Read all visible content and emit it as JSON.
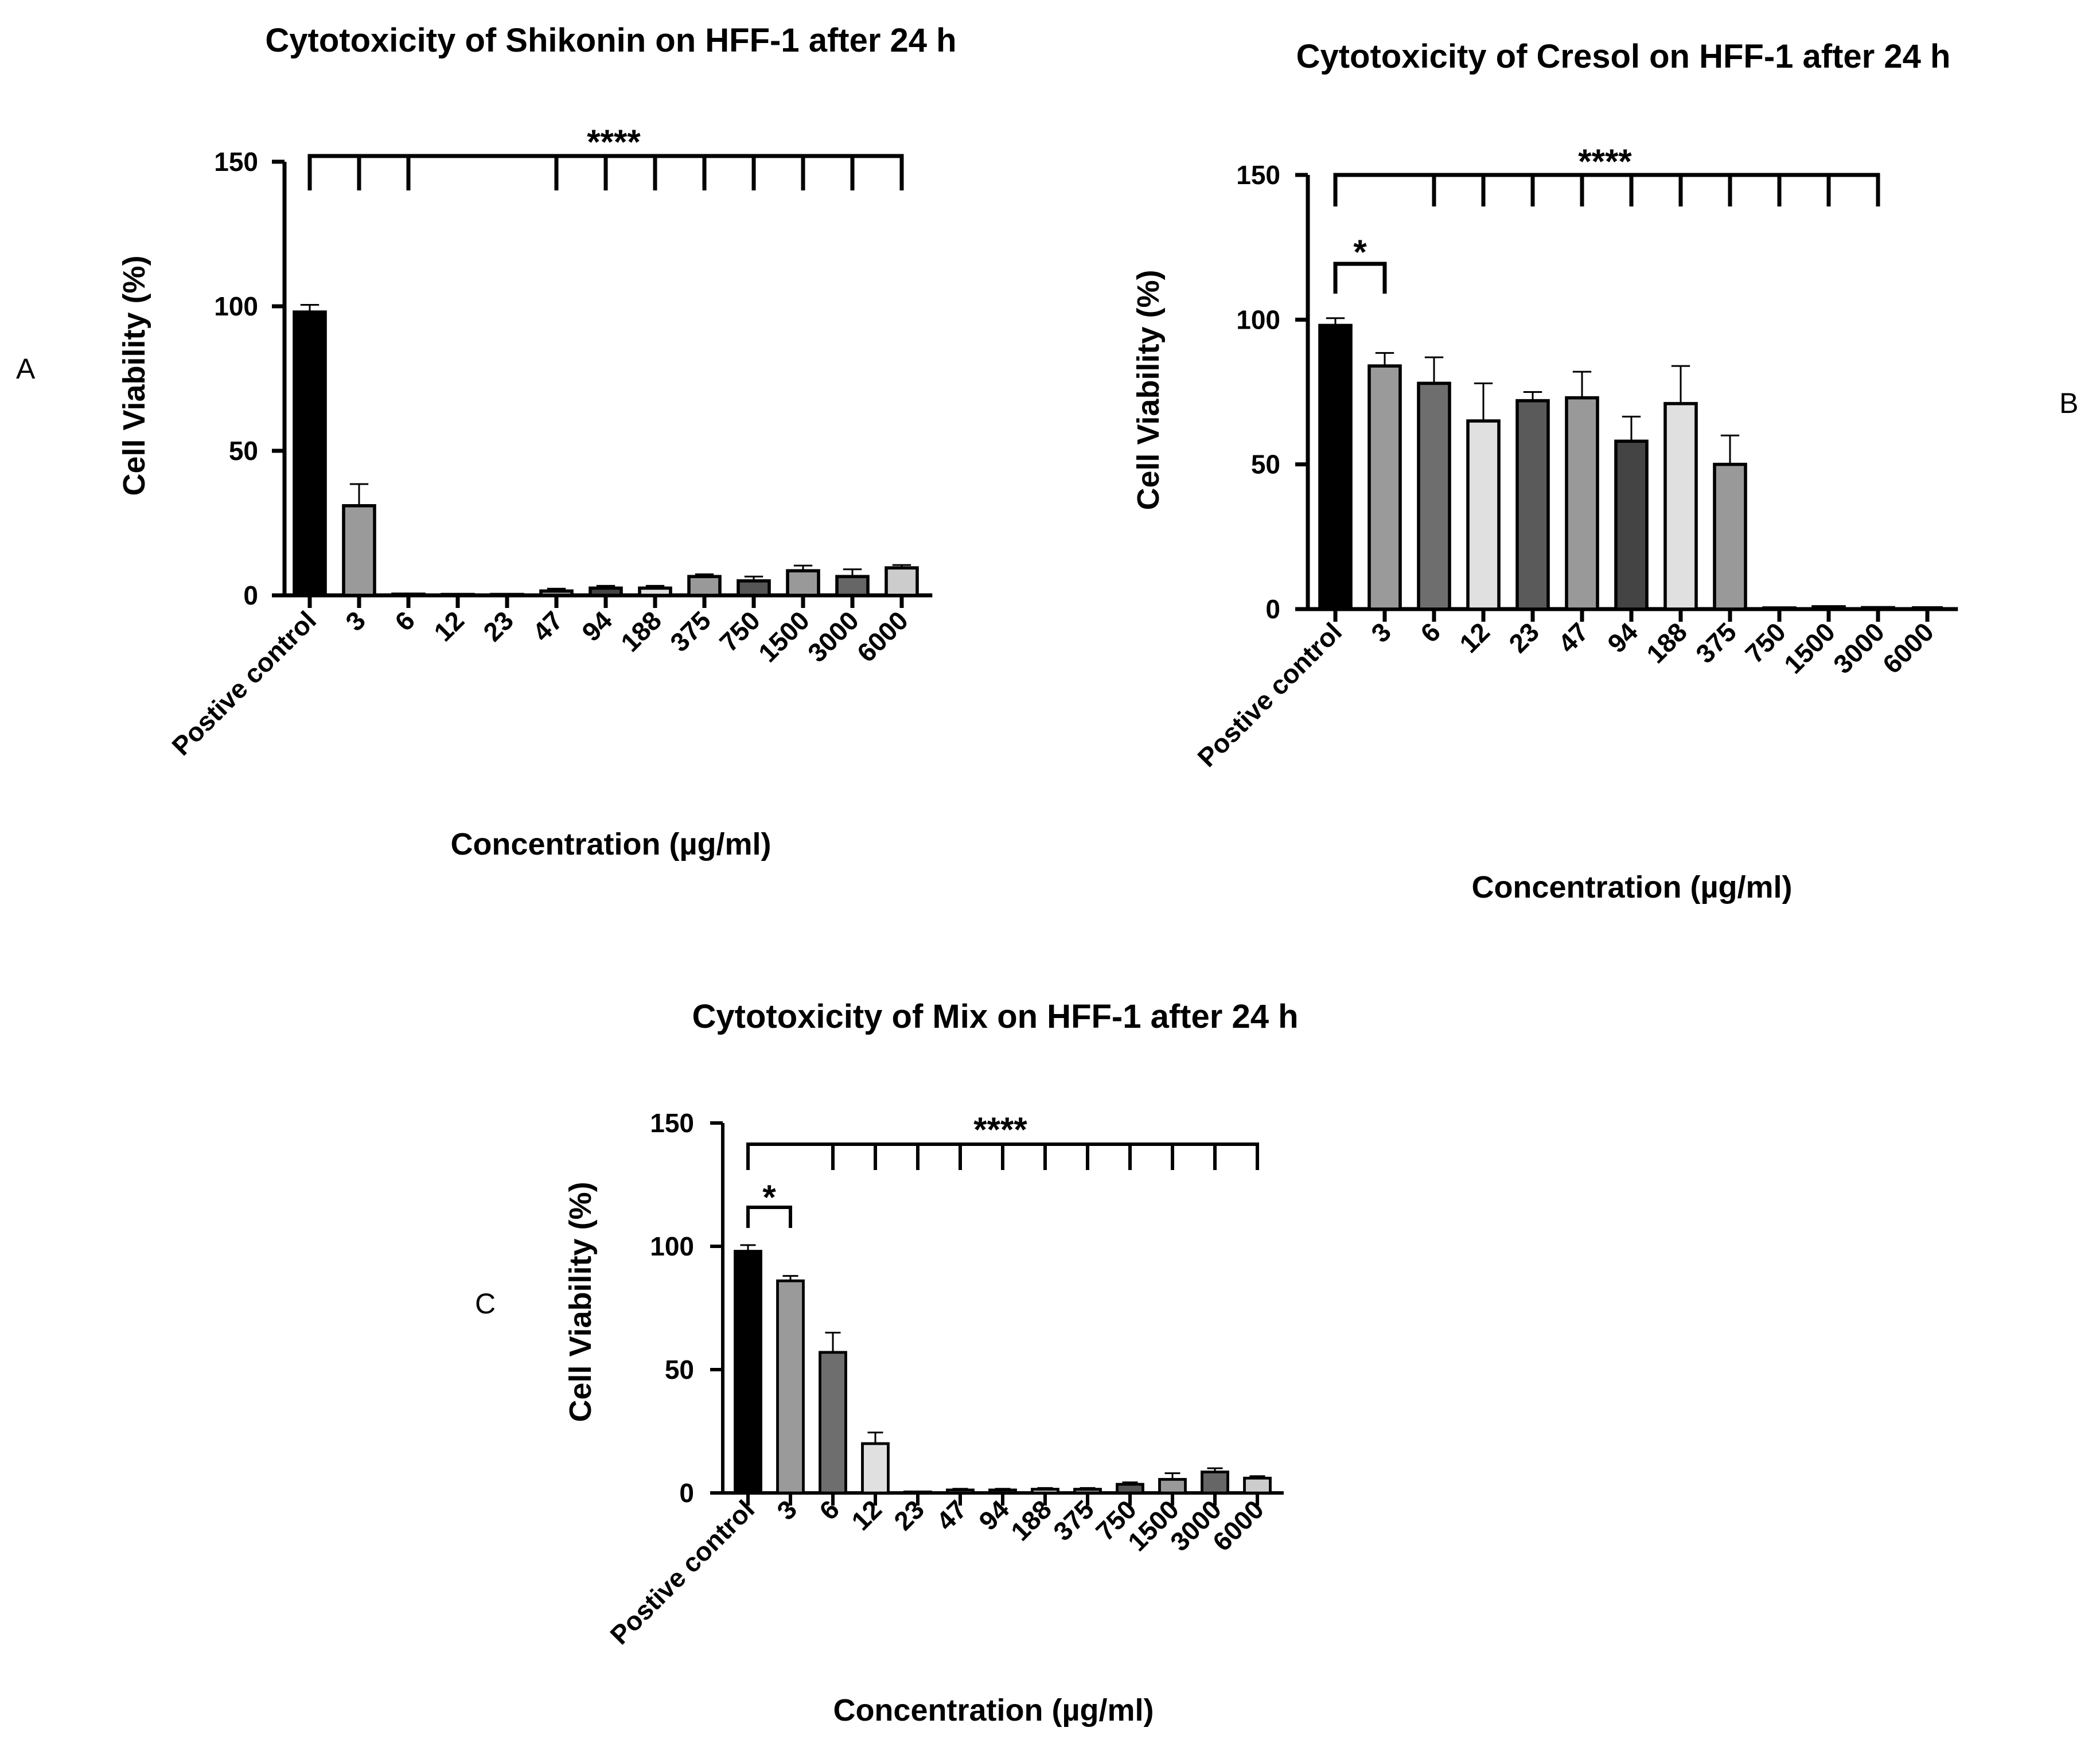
{
  "chart_data": [
    {
      "panel": "A",
      "type": "bar",
      "title": "Cytotoxicity of Shikonin on HFF-1 after 24 h",
      "xlabel": "Concentration (µg/ml)",
      "ylabel": "Cell Viability (%)",
      "ylim": [
        0,
        150
      ],
      "yticks": [
        "0",
        "50",
        "100",
        "150"
      ],
      "categories": [
        "Postive control",
        "3",
        "6",
        "12",
        "23",
        "47",
        "94",
        "188",
        "375",
        "750",
        "1500",
        "3000",
        "6000"
      ],
      "values": [
        98,
        31,
        0.4,
        0.3,
        0.3,
        1.5,
        2.5,
        2.5,
        6.5,
        5,
        8.5,
        6.5,
        9.5
      ],
      "errors": [
        2.5,
        7.5,
        0,
        0,
        0,
        0.8,
        0.8,
        0.8,
        0.8,
        1.5,
        1.8,
        2.5,
        1
      ],
      "colors": [
        "#000000",
        "#9a9a9a",
        "#6e6e6e",
        "#e0e0e0",
        "#5a5a5a",
        "#999999",
        "#444444",
        "#e0e0e0",
        "#999999",
        "#555555",
        "#999999",
        "#666666",
        "#cccccc"
      ],
      "significance": [
        {
          "label": "****",
          "bracket_from": 0,
          "bracket_to": 12,
          "ticks": [
            1,
            2,
            5,
            6,
            7,
            8,
            9,
            10,
            11,
            12
          ]
        }
      ]
    },
    {
      "panel": "B",
      "type": "bar",
      "title": "Cytotoxicity of Cresol on HFF-1 after 24 h",
      "xlabel": "Concentration (µg/ml)",
      "ylabel": "Cell Viability (%)",
      "ylim": [
        0,
        150
      ],
      "yticks": [
        "0",
        "50",
        "100",
        "150"
      ],
      "categories": [
        "Postive control",
        "3",
        "6",
        "12",
        "23",
        "47",
        "94",
        "188",
        "375",
        "750",
        "1500",
        "3000",
        "6000"
      ],
      "values": [
        98,
        84,
        78,
        65,
        72,
        73,
        58,
        71,
        50,
        0.4,
        0.8,
        0.5,
        0
      ],
      "errors": [
        2.5,
        4.5,
        9,
        13,
        3,
        9,
        8.5,
        13,
        10,
        0,
        0,
        0,
        0
      ],
      "colors": [
        "#000000",
        "#9a9a9a",
        "#6e6e6e",
        "#e0e0e0",
        "#5a5a5a",
        "#999999",
        "#444444",
        "#e0e0e0",
        "#999999",
        "#555555",
        "#999999",
        "#666666",
        "#cccccc"
      ],
      "significance": [
        {
          "label": "*",
          "bracket_from": 0,
          "bracket_to": 1,
          "ticks": [
            1
          ]
        },
        {
          "label": "****",
          "bracket_from": 0,
          "bracket_to": 11,
          "ticks": [
            2,
            3,
            4,
            5,
            6,
            7,
            8,
            9,
            10,
            11
          ]
        }
      ]
    },
    {
      "panel": "C",
      "type": "bar",
      "title": "Cytotoxicity of Mix on HFF-1 after 24 h",
      "xlabel": "Concentration (µg/ml)",
      "ylabel": "Cell Viability (%)",
      "ylim": [
        0,
        150
      ],
      "yticks": [
        "0",
        "50",
        "100",
        "150"
      ],
      "categories": [
        "Postive control",
        "3",
        "6",
        "12",
        "23",
        "47",
        "94",
        "188",
        "375",
        "750",
        "1500",
        "3000",
        "6000"
      ],
      "values": [
        98,
        86,
        57,
        20,
        0.4,
        1.2,
        1.2,
        1.5,
        1.5,
        3.5,
        5.5,
        8.5,
        6
      ],
      "errors": [
        2.5,
        2,
        8,
        4.5,
        0,
        0.5,
        0.5,
        0.5,
        0.5,
        0.8,
        2.5,
        1.5,
        0.8
      ],
      "colors": [
        "#000000",
        "#9a9a9a",
        "#6e6e6e",
        "#e0e0e0",
        "#5a5a5a",
        "#999999",
        "#444444",
        "#e0e0e0",
        "#999999",
        "#555555",
        "#999999",
        "#666666",
        "#cccccc"
      ],
      "significance": [
        {
          "label": "*",
          "bracket_from": 0,
          "bracket_to": 1,
          "ticks": [
            1
          ]
        },
        {
          "label": "****",
          "bracket_from": 0,
          "bracket_to": 12,
          "ticks": [
            2,
            3,
            4,
            5,
            6,
            7,
            8,
            9,
            10,
            11,
            12
          ]
        }
      ]
    }
  ]
}
